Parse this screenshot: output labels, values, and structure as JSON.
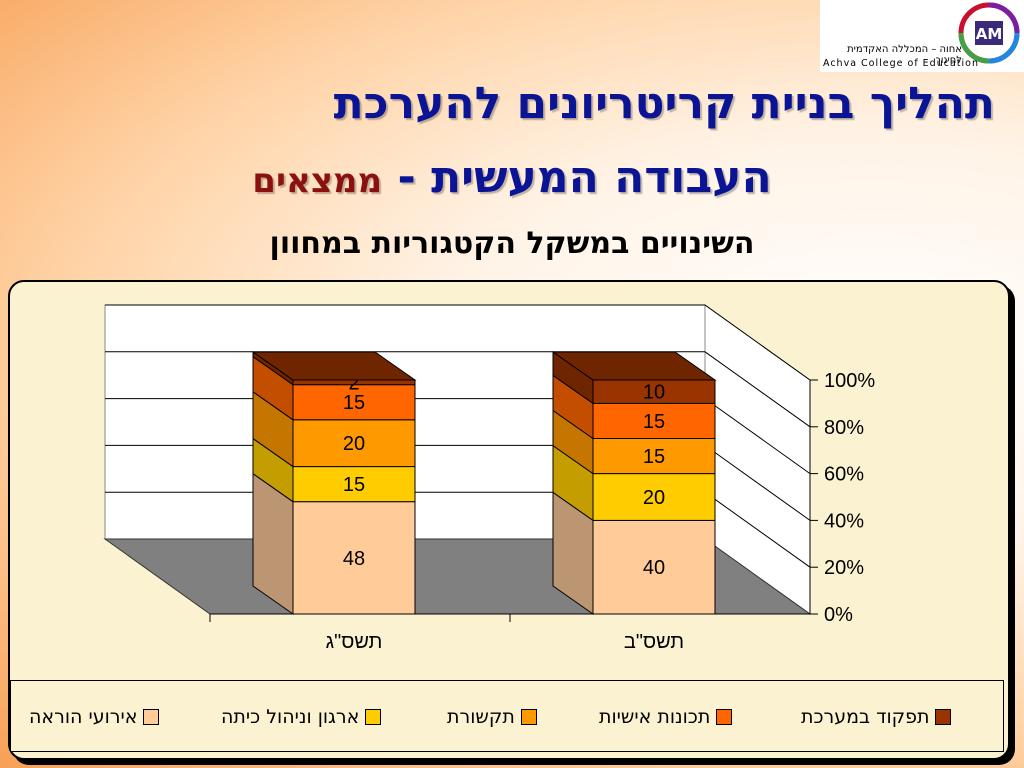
{
  "logo": {
    "he": "אחוה – המכללה האקדמית לחינוך",
    "en": "Achva College of Education",
    "mark": "AM"
  },
  "title_line1": "תהליך בניית קריטריונים להערכת",
  "title_line2_main": "העבודה המעשית",
  "title_line2_sep": "-",
  "title_line2_accent": "ממצאים",
  "subtitle": "השינויים במשקל הקטגוריות במחוון",
  "chart_data": {
    "type": "bar",
    "stacked": true,
    "three_d": true,
    "categories": [
      "תשס\"ג",
      "תשס\"ב"
    ],
    "series": [
      {
        "name": "אירועי הוראה",
        "values": [
          48,
          40
        ],
        "color": "#ffcc99",
        "side": "#bc9672"
      },
      {
        "name": "ארגון וניהול כיתה",
        "values": [
          15,
          20
        ],
        "color": "#ffcc00",
        "side": "#c49e00"
      },
      {
        "name": "תקשורת",
        "values": [
          20,
          15
        ],
        "color": "#ff9900",
        "side": "#c57600"
      },
      {
        "name": "תכונות אישיות",
        "values": [
          15,
          15
        ],
        "color": "#ff6600",
        "side": "#c44e00"
      },
      {
        "name": "תפקוד במערכת",
        "values": [
          2,
          10
        ],
        "color": "#993300",
        "side": "#6f2500"
      }
    ],
    "y_ticks": [
      "0%",
      "20%",
      "40%",
      "60%",
      "80%",
      "100%"
    ],
    "ylim": [
      0,
      100
    ],
    "grid": true,
    "legend_position": "bottom"
  }
}
